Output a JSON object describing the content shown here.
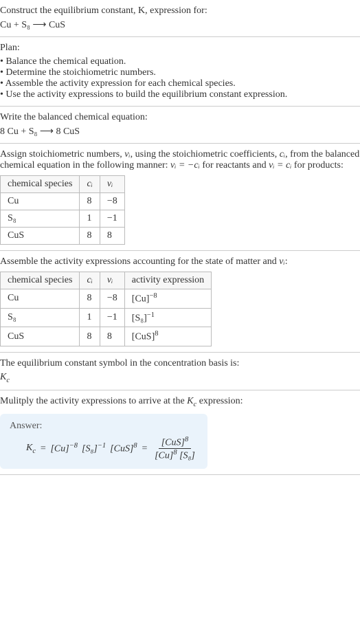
{
  "header": {
    "prompt": "Construct the equilibrium constant, K, expression for:",
    "equation": "Cu + S₈  ⟶  CuS"
  },
  "plan": {
    "title": "Plan:",
    "items": [
      "Balance the chemical equation.",
      "Determine the stoichiometric numbers.",
      "Assemble the activity expression for each chemical species.",
      "Use the activity expressions to build the equilibrium constant expression."
    ]
  },
  "balanced": {
    "intro": "Write the balanced chemical equation:",
    "equation": "8 Cu + S₈  ⟶  8 CuS"
  },
  "stoich": {
    "intro_a": "Assign stoichiometric numbers, ",
    "nu_i": "νᵢ",
    "intro_b": ", using the stoichiometric coefficients, ",
    "c_i": "cᵢ",
    "intro_c": ", from the balanced chemical equation in the following manner: ",
    "rel1": "νᵢ = −cᵢ",
    "intro_d": " for reactants and ",
    "rel2": "νᵢ = cᵢ",
    "intro_e": " for products:",
    "headers": [
      "chemical species",
      "cᵢ",
      "νᵢ"
    ],
    "rows": [
      [
        "Cu",
        "8",
        "−8"
      ],
      [
        "S₈",
        "1",
        "−1"
      ],
      [
        "CuS",
        "8",
        "8"
      ]
    ]
  },
  "activity": {
    "intro_a": "Assemble the activity expressions accounting for the state of matter and ",
    "nu_i": "νᵢ",
    "intro_b": ":",
    "headers": [
      "chemical species",
      "cᵢ",
      "νᵢ",
      "activity expression"
    ],
    "rows": [
      {
        "sp": "Cu",
        "c": "8",
        "nu": "−8",
        "base": "[Cu]",
        "exp": "−8"
      },
      {
        "sp": "S₈",
        "c": "1",
        "nu": "−1",
        "base": "[S₈]",
        "exp": "−1"
      },
      {
        "sp": "CuS",
        "c": "8",
        "nu": "8",
        "base": "[CuS]",
        "exp": "8"
      }
    ]
  },
  "symbol": {
    "intro": "The equilibrium constant symbol in the concentration basis is:",
    "sym": "K",
    "sub": "c"
  },
  "multiply": {
    "intro_a": "Mulitply the activity expressions to arrive at the ",
    "k": "K",
    "ksub": "c",
    "intro_b": " expression:"
  },
  "answer": {
    "label": "Answer:",
    "k": "K",
    "ksub": "c",
    "eq": " = ",
    "t1": "[Cu]",
    "e1": "−8",
    "t2": "[S₈]",
    "e2": "−1",
    "t3": "[CuS]",
    "e3": "8",
    "eq2": " = ",
    "num": "[CuS]",
    "num_exp": "8",
    "den1": "[Cu]",
    "den1_exp": "8",
    "den2": "[S₈]"
  }
}
